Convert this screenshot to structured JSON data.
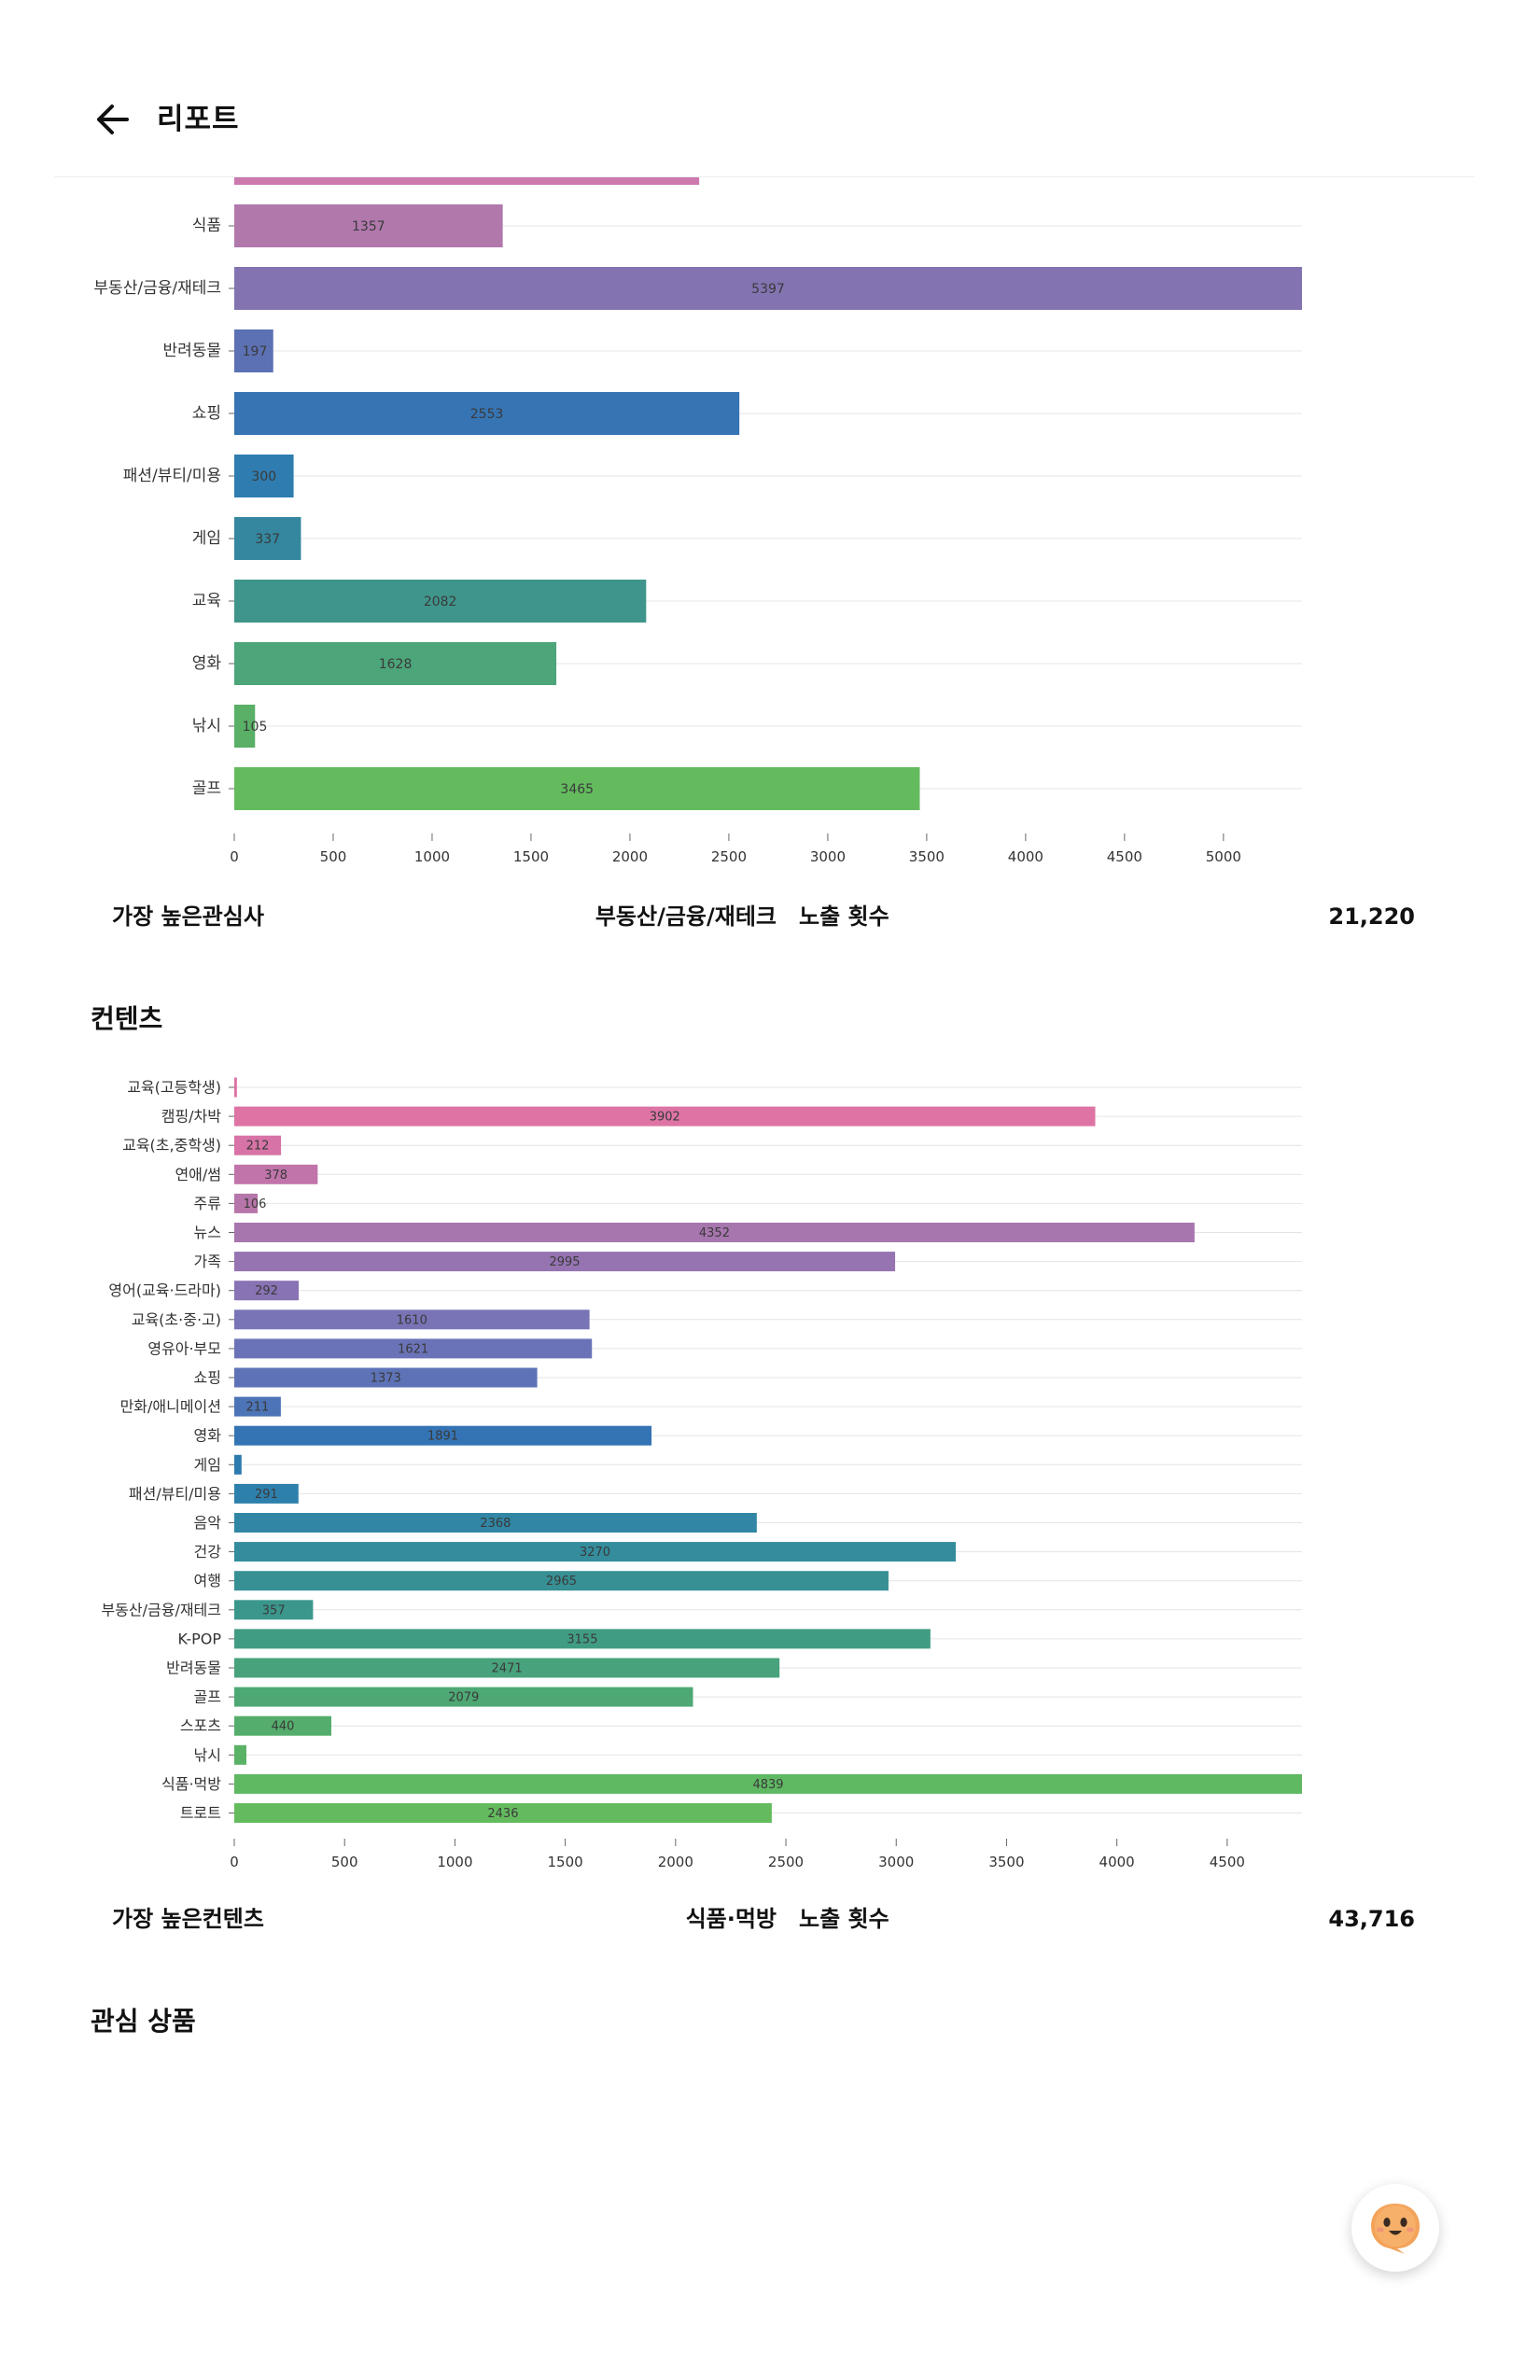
{
  "header": {
    "title": "리포트",
    "back_icon": "arrow-left-icon"
  },
  "interest_chart": {
    "chart_data": {
      "type": "bar",
      "orientation": "horizontal",
      "categories": [
        "식품",
        "부동산/금융/재테크",
        "반려동물",
        "쇼핑",
        "패션/뷰티/미용",
        "게임",
        "교육",
        "영화",
        "낚시",
        "골프"
      ],
      "values": [
        1357,
        5397,
        197,
        2553,
        300,
        337,
        2082,
        1628,
        105,
        3465
      ],
      "partially_visible_bar_above": {
        "value": 2350,
        "color": "#cc79ae"
      },
      "colors": [
        "#b178ac",
        "#8373b1",
        "#5c71b4",
        "#3674b4",
        "#2f7db0",
        "#34879f",
        "#3f958b",
        "#4da57a",
        "#59b066",
        "#63bb5e"
      ],
      "xticks": [
        0,
        500,
        1000,
        1500,
        2000,
        2500,
        3000,
        3500,
        4000,
        4500,
        5000
      ],
      "xlim": [
        0,
        5397
      ],
      "grid": "horizontal"
    },
    "summary": {
      "label": "가장 높은관심사",
      "name": "부동산/금융/재테크",
      "kind": "노출 횟수",
      "value": "21,220"
    }
  },
  "contents_section": {
    "title": "컨텐츠"
  },
  "contents_chart": {
    "chart_data": {
      "type": "bar",
      "orientation": "horizontal",
      "categories": [
        "교육(고등학생)",
        "캠핑/차박",
        "교육(초,중학생)",
        "연애/썸",
        "주류",
        "뉴스",
        "가족",
        "영어(교육·드라마)",
        "교육(초·중·고)",
        "영유아·부모",
        "쇼핑",
        "만화/애니메이션",
        "영화",
        "게임",
        "패션/뷰티/미용",
        "음악",
        "건강",
        "여행",
        "부동산/금융/재테크",
        "K-POP",
        "반려동물",
        "골프",
        "스포츠",
        "낚시",
        "식품·먹방",
        "트로트"
      ],
      "values": [
        12,
        3902,
        212,
        378,
        106,
        4352,
        2995,
        292,
        1610,
        1621,
        1373,
        211,
        1891,
        33,
        291,
        2368,
        3270,
        2965,
        357,
        3155,
        2471,
        2079,
        440,
        55,
        4839,
        2436
      ],
      "value_labels_shown": [
        false,
        true,
        true,
        true,
        true,
        true,
        true,
        true,
        true,
        true,
        true,
        true,
        true,
        false,
        true,
        true,
        true,
        true,
        true,
        true,
        true,
        true,
        true,
        false,
        true,
        true
      ],
      "colors": [
        "#dc73a3",
        "#dd74a4",
        "#d773a6",
        "#c174aa",
        "#b776aa",
        "#a776ae",
        "#9674b2",
        "#8873b4",
        "#7874b6",
        "#6b73b8",
        "#5e73b7",
        "#4c74b6",
        "#3474b4",
        "#2d7aaf",
        "#2e80ac",
        "#3086a4",
        "#348c9c",
        "#379094",
        "#3b968c",
        "#419c84",
        "#48a27c",
        "#4ea874",
        "#54ad6c",
        "#5ab266",
        "#5fb862",
        "#63bb5e"
      ],
      "xticks": [
        0,
        500,
        1000,
        1500,
        2000,
        2500,
        3000,
        3500,
        4000,
        4500
      ],
      "xlim": [
        0,
        4839
      ],
      "grid": "horizontal"
    },
    "summary": {
      "label": "가장 높은컨텐츠",
      "name": "식품·먹방",
      "kind": "노출 횟수",
      "value": "43,716"
    }
  },
  "products_section": {
    "title": "관심 상품"
  },
  "chatbot_button": {
    "icon": "mascot-face-icon"
  }
}
